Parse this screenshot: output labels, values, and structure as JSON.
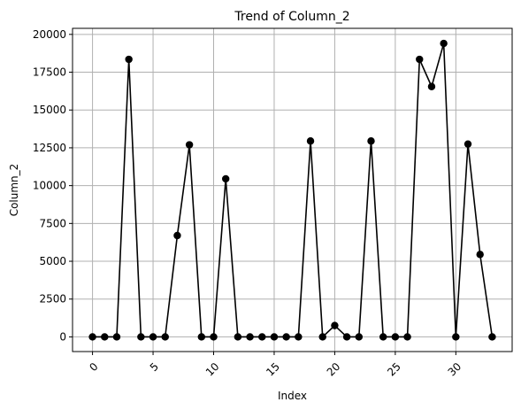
{
  "chart_data": {
    "type": "line",
    "title": "Trend of Column_2",
    "xlabel": "Index",
    "ylabel": "Column_2",
    "xlim": [
      -1.65,
      34.65
    ],
    "ylim": [
      -970,
      20400
    ],
    "x_ticks": [
      0,
      5,
      10,
      15,
      20,
      25,
      30
    ],
    "y_ticks": [
      0,
      2500,
      5000,
      7500,
      10000,
      12500,
      15000,
      17500,
      20000
    ],
    "grid": true,
    "x_tick_rotation": 45,
    "line_color": "#000000",
    "marker": "circle",
    "x": [
      0,
      1,
      2,
      3,
      4,
      5,
      6,
      7,
      8,
      9,
      10,
      11,
      12,
      13,
      14,
      15,
      16,
      17,
      18,
      19,
      20,
      21,
      22,
      23,
      24,
      25,
      26,
      27,
      28,
      29,
      30,
      31,
      32,
      33
    ],
    "y": [
      0,
      0,
      0,
      18350,
      0,
      0,
      0,
      6700,
      12700,
      0,
      0,
      10450,
      0,
      0,
      0,
      0,
      0,
      0,
      12950,
      0,
      750,
      0,
      0,
      12950,
      0,
      0,
      0,
      18350,
      16550,
      19400,
      0,
      12750,
      5450,
      0
    ]
  }
}
